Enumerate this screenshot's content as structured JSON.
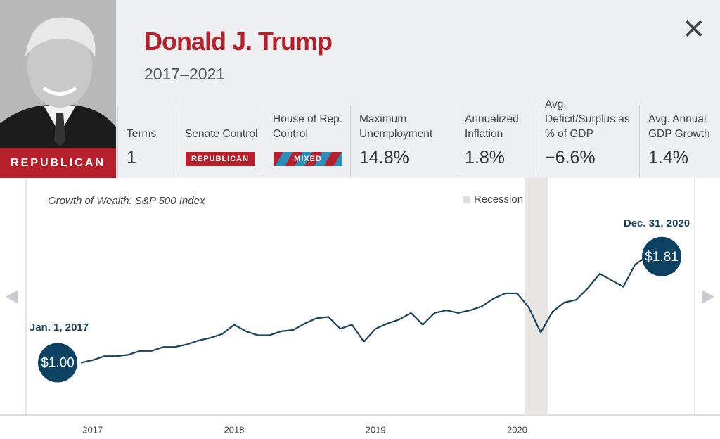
{
  "header": {
    "name": "Donald J. Trump",
    "years": "2017–2021",
    "party": "REPUBLICAN"
  },
  "stats": [
    {
      "label": "Terms",
      "value": "1"
    },
    {
      "label": "Senate Control",
      "badge": "REPUBLICAN"
    },
    {
      "label": "House of Rep. Control",
      "badge": "MIXED"
    },
    {
      "label": "Maximum Unemployment",
      "value": "14.8%"
    },
    {
      "label": "Annualized Inflation",
      "value": "1.8%"
    },
    {
      "label": "Avg. Deficit/Surplus as % of GDP",
      "value": "−6.6%"
    },
    {
      "label": "Avg. Annual GDP Growth",
      "value": "1.4%"
    }
  ],
  "chart_data": {
    "type": "line",
    "title": "Growth of Wealth: S&P 500 Index",
    "legend": "Recession",
    "categories": [
      null,
      "2017",
      null,
      null,
      null,
      null,
      null,
      null,
      null,
      null,
      null,
      null,
      null,
      "2018",
      null,
      null,
      null,
      null,
      null,
      null,
      null,
      null,
      null,
      null,
      null,
      "2019",
      null,
      null,
      null,
      null,
      null,
      null,
      null,
      null,
      null,
      null,
      null,
      "2020",
      null,
      null,
      null,
      null,
      null,
      null,
      null,
      null,
      null,
      null,
      null
    ],
    "series": [
      {
        "name": "S&P 500 Index",
        "color": "#1b4460",
        "values": [
          1.0,
          1.02,
          1.05,
          1.05,
          1.06,
          1.09,
          1.09,
          1.12,
          1.12,
          1.14,
          1.17,
          1.19,
          1.22,
          1.29,
          1.24,
          1.21,
          1.21,
          1.24,
          1.25,
          1.3,
          1.34,
          1.35,
          1.26,
          1.29,
          1.16,
          1.26,
          1.3,
          1.33,
          1.38,
          1.29,
          1.38,
          1.4,
          1.38,
          1.4,
          1.43,
          1.49,
          1.53,
          1.53,
          1.42,
          1.23,
          1.39,
          1.46,
          1.48,
          1.57,
          1.68,
          1.63,
          1.58,
          1.75,
          1.81
        ],
        "value_labels": [
          "$1.00",
          null,
          null,
          null,
          null,
          null,
          null,
          null,
          null,
          null,
          null,
          null,
          null,
          null,
          null,
          null,
          null,
          null,
          null,
          null,
          null,
          null,
          null,
          null,
          null,
          null,
          null,
          null,
          null,
          null,
          null,
          null,
          null,
          null,
          null,
          null,
          null,
          null,
          null,
          null,
          null,
          null,
          null,
          null,
          null,
          null,
          null,
          null,
          "$1.81"
        ]
      }
    ],
    "annotations": [
      "Jan. 1, 2017",
      "Dec. 31, 2020"
    ],
    "ylim": [
      0.6,
      2.4
    ]
  }
}
